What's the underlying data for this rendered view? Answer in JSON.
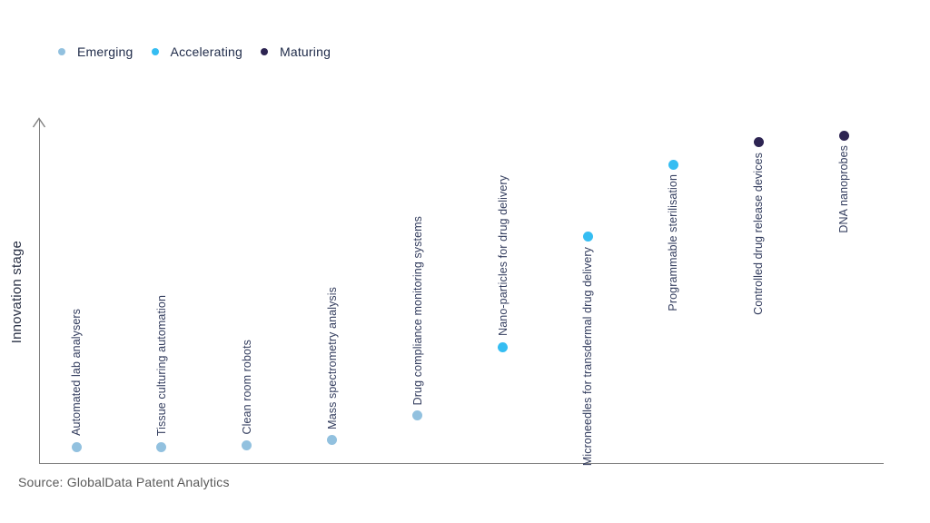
{
  "legend": {
    "items": [
      {
        "label": "Emerging",
        "color": "#92c1df"
      },
      {
        "label": "Accelerating",
        "color": "#35bdf2"
      },
      {
        "label": "Maturing",
        "color": "#2d2452"
      }
    ]
  },
  "chart_data": {
    "type": "scatter",
    "title": "",
    "xlabel": "",
    "ylabel": "Innovation stage",
    "grid": false,
    "legend_position": "top-left",
    "x_axis": {
      "type": "categorical",
      "ticks": "none"
    },
    "y_axis": {
      "range": [
        0,
        100
      ],
      "ticks": "none",
      "arrow": true,
      "note": "values estimated from dot heights, 0 = axis bottom, 100 = axis top"
    },
    "stage_colors": {
      "Emerging": "#92c1df",
      "Accelerating": "#35bdf2",
      "Maturing": "#2d2452"
    },
    "points": [
      {
        "label": "Automated lab analysers",
        "stage": "Emerging",
        "value": 5,
        "label_side": "above"
      },
      {
        "label": "Tissue culturing automation",
        "stage": "Emerging",
        "value": 5,
        "label_side": "above"
      },
      {
        "label": "Clean room robots",
        "stage": "Emerging",
        "value": 5.5,
        "label_side": "above"
      },
      {
        "label": "Mass spectrometry analysis",
        "stage": "Emerging",
        "value": 7,
        "label_side": "above"
      },
      {
        "label": "Drug compliance monitoring systems",
        "stage": "Emerging",
        "value": 14,
        "label_side": "above"
      },
      {
        "label": "Nano-particles for drug delivery",
        "stage": "Accelerating",
        "value": 34,
        "label_side": "above"
      },
      {
        "label": "Microneedles for transdermal drug delivery",
        "stage": "Accelerating",
        "value": 66,
        "label_side": "below"
      },
      {
        "label": "Programmable sterilisation",
        "stage": "Accelerating",
        "value": 87,
        "label_side": "below"
      },
      {
        "label": "Controlled drug release devices",
        "stage": "Maturing",
        "value": 93.5,
        "label_side": "below"
      },
      {
        "label": "DNA nanoprobes",
        "stage": "Maturing",
        "value": 95.5,
        "label_side": "below"
      }
    ]
  },
  "source": {
    "text": "Source: GlobalData Patent Analytics"
  },
  "colors": {
    "background": "#ffffff",
    "axis": "#808080",
    "point_label_text": "#333d5e",
    "legend_text": "#1e2a48",
    "ylabel_text": "#2a3145",
    "source_text": "#595959"
  }
}
